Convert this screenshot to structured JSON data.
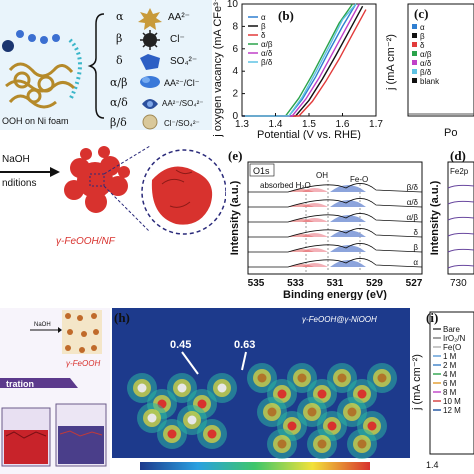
{
  "panel_a": {
    "substrate_label": "OOH on Ni foam",
    "rows": [
      {
        "symbol": "α",
        "ion": "AA²⁻"
      },
      {
        "symbol": "β",
        "ion": "Cl⁻"
      },
      {
        "symbol": "δ",
        "ion": "SO₄²⁻"
      },
      {
        "symbol": "α/β",
        "ion": "AA²⁻/Cl⁻"
      },
      {
        "symbol": "α/δ",
        "ion": "AA²⁻/SO₄²⁻"
      },
      {
        "symbol": "β/δ",
        "ion": "Cl⁻/SO₄²⁻"
      }
    ]
  },
  "panel_b": {
    "label": "(b)",
    "xlabel": "Potential (V vs. RHE)",
    "ylabel": "j oxygen vacancy (mA CFe³⁺⁻¹)",
    "xticks": [
      "1.3",
      "1.4",
      "1.5",
      "1.6",
      "1.7"
    ],
    "yticks": [
      "0",
      "2",
      "4",
      "6",
      "8",
      "10"
    ],
    "legend": [
      "α",
      "β",
      "δ",
      "α/β",
      "α/δ",
      "β/δ"
    ],
    "colors": [
      "#2f7fd1",
      "#111111",
      "#e23b3b",
      "#2aa34a",
      "#c040c8",
      "#5fc3e4"
    ]
  },
  "chart_data": {
    "type": "line",
    "xlabel": "Potential (V vs. RHE)",
    "ylabel": "j oxygen vacancy (mA CFe³⁺⁻¹)",
    "xlim": [
      1.3,
      1.7
    ],
    "ylim": [
      0,
      10
    ],
    "series": [
      {
        "name": "α",
        "x": [
          1.3,
          1.44,
          1.48,
          1.52,
          1.56,
          1.6,
          1.64
        ],
        "values": [
          0.0,
          0.0,
          1.5,
          3.5,
          5.8,
          8.0,
          10.0
        ]
      },
      {
        "name": "β",
        "x": [
          1.3,
          1.46,
          1.5,
          1.54,
          1.58,
          1.62,
          1.66
        ],
        "values": [
          0.0,
          0.0,
          1.4,
          3.3,
          5.4,
          7.6,
          9.8
        ]
      },
      {
        "name": "δ",
        "x": [
          1.3,
          1.47,
          1.51,
          1.55,
          1.59,
          1.63,
          1.67
        ],
        "values": [
          0.0,
          0.0,
          1.3,
          3.1,
          5.1,
          7.3,
          9.5
        ]
      },
      {
        "name": "α/β",
        "x": [
          1.3,
          1.43,
          1.47,
          1.51,
          1.55,
          1.59,
          1.63
        ],
        "values": [
          0.0,
          0.0,
          1.6,
          3.7,
          6.0,
          8.3,
          10.0
        ]
      },
      {
        "name": "α/δ",
        "x": [
          1.3,
          1.45,
          1.49,
          1.53,
          1.57,
          1.61,
          1.65
        ],
        "values": [
          0.0,
          0.0,
          1.5,
          3.4,
          5.6,
          7.8,
          10.0
        ]
      },
      {
        "name": "β/δ",
        "x": [
          1.3,
          1.44,
          1.48,
          1.52,
          1.56,
          1.6,
          1.64
        ],
        "values": [
          0.0,
          0.0,
          1.7,
          3.9,
          6.2,
          8.6,
          10.0
        ]
      }
    ]
  },
  "panel_c": {
    "label": "(c)",
    "ylabel": "j (mA cm⁻²)",
    "xlabel_partial": "Po",
    "legend": [
      "α",
      "β",
      "δ",
      "α/β",
      "α/δ",
      "β/δ",
      "blank"
    ]
  },
  "panel_mid": {
    "naoh": "NaOH",
    "conditions": "nditions",
    "product": "γ-FeOOH/NF"
  },
  "panel_e": {
    "label": "(e)",
    "tag": "O1s",
    "peaks": [
      "absorbed H₂O",
      "OH",
      "Fe-O"
    ],
    "xlabel": "Binding energy (eV)",
    "ylabel": "Intensity (a.u.)",
    "xticks": [
      "535",
      "533",
      "531",
      "529",
      "527"
    ],
    "traces": [
      "β/δ",
      "α/δ",
      "α/β",
      "δ",
      "β",
      "α"
    ]
  },
  "panel_d": {
    "label": "(d)",
    "tag": "Fe2p",
    "ylabel": "Intensity (a.u.)",
    "xtick_partial": "730"
  },
  "panel_g": {
    "naoh": "NaOH",
    "product": "γ-FeOOH",
    "step": "tration"
  },
  "panel_h": {
    "label": "(h)",
    "title": "γ-FeOOH@γ-NiOOH",
    "val1": "0.45",
    "val2": "0.63"
  },
  "panel_i": {
    "label": "(i)",
    "ylabel": "j (mA cm⁻²)",
    "xtick": "1.4",
    "legend": [
      "Bare",
      "IrO₂/N",
      "Fe(O",
      "1 M",
      "2 M",
      "4 M",
      "6 M",
      "8 M",
      "10 M",
      "12 M"
    ],
    "colors": [
      "#333333",
      "#7a7a7a",
      "#b0b0b0",
      "#5a9ad6",
      "#3a7fc8",
      "#2aa34a",
      "#e29b2a",
      "#c040c8",
      "#d23b3b",
      "#1a4fa0"
    ]
  }
}
